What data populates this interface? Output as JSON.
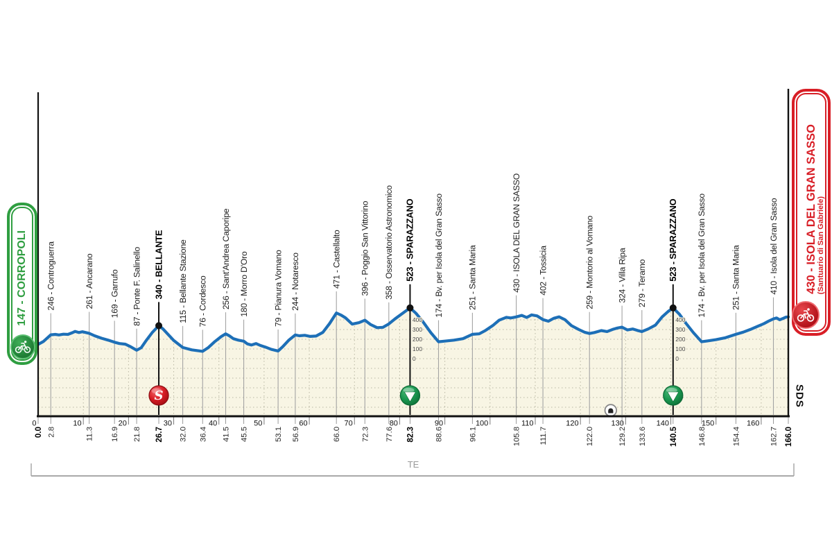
{
  "start_badge": {
    "label": "147 - CORROPOLI",
    "color": "#2f9e41",
    "icon": "cyclist"
  },
  "finish_badge": {
    "label": "430 - ISOLA DEL GRAN SASSO",
    "sublabel": "(Santuario di San Gabriele)",
    "color": "#d81e26",
    "icon": "cyclist"
  },
  "province_label": "TE",
  "logo": "SDS",
  "chart_data": {
    "type": "line",
    "x_unit": "km",
    "y_unit": "m",
    "km_start": 0.0,
    "km_end": 166.0,
    "start": {
      "km": 0.0,
      "elevation": 147,
      "name": "CORROPOLI"
    },
    "finish": {
      "km": 166.0,
      "elevation": 430,
      "name": "ISOLA DEL GRAN SASSO (Santuario di San Gabriele)"
    },
    "axis_km_ticks": [
      0,
      10,
      20,
      30,
      40,
      50,
      60,
      70,
      80,
      90,
      100,
      110,
      120,
      130,
      140,
      150,
      160
    ],
    "km_labels": [
      {
        "value": "0.0",
        "bold": true
      },
      {
        "value": "2.8",
        "bold": false
      },
      {
        "value": "11.3",
        "bold": false
      },
      {
        "value": "16.9",
        "bold": false
      },
      {
        "value": "21.8",
        "bold": false
      },
      {
        "value": "26.7",
        "bold": true
      },
      {
        "value": "32.0",
        "bold": false
      },
      {
        "value": "36.4",
        "bold": false
      },
      {
        "value": "41.5",
        "bold": false
      },
      {
        "value": "45.5",
        "bold": false
      },
      {
        "value": "53.1",
        "bold": false
      },
      {
        "value": "56.9",
        "bold": false
      },
      {
        "value": "66.0",
        "bold": false
      },
      {
        "value": "72.3",
        "bold": false
      },
      {
        "value": "77.6",
        "bold": false
      },
      {
        "value": "82.3",
        "bold": true
      },
      {
        "value": "88.6",
        "bold": false
      },
      {
        "value": "96.1",
        "bold": false
      },
      {
        "value": "105.8",
        "bold": false
      },
      {
        "value": "111.7",
        "bold": false
      },
      {
        "value": "122.0",
        "bold": false
      },
      {
        "value": "129.2",
        "bold": false
      },
      {
        "value": "133.6",
        "bold": false
      },
      {
        "value": "140.5",
        "bold": true
      },
      {
        "value": "146.8",
        "bold": false
      },
      {
        "value": "154.4",
        "bold": false
      },
      {
        "value": "162.7",
        "bold": false
      },
      {
        "value": "166.0",
        "bold": true
      }
    ],
    "waypoints": [
      {
        "km": 2.8,
        "elevation": 246,
        "name": "Controguerra",
        "style": "normal"
      },
      {
        "km": 11.3,
        "elevation": 261,
        "name": "Ancarano",
        "style": "normal"
      },
      {
        "km": 16.9,
        "elevation": 169,
        "name": "Garrufo",
        "style": "normal"
      },
      {
        "km": 21.8,
        "elevation": 87,
        "name": "Ponte F. Salinello",
        "style": "normal"
      },
      {
        "km": 26.7,
        "elevation": 340,
        "name": "BELLANTE",
        "style": "sprint"
      },
      {
        "km": 32.0,
        "elevation": 115,
        "name": "Bellante Stazione",
        "style": "normal"
      },
      {
        "km": 36.4,
        "elevation": 76,
        "name": "Cordesco",
        "style": "normal"
      },
      {
        "km": 41.5,
        "elevation": 256,
        "name": "Sant'Andrea Caporipe",
        "style": "normal"
      },
      {
        "km": 45.5,
        "elevation": 180,
        "name": "Morro D'Oro",
        "style": "normal"
      },
      {
        "km": 53.1,
        "elevation": 79,
        "name": "Pianura Vomano",
        "style": "normal"
      },
      {
        "km": 56.9,
        "elevation": 244,
        "name": "Notaresco",
        "style": "normal"
      },
      {
        "km": 66.0,
        "elevation": 471,
        "name": "Castellalto",
        "style": "normal"
      },
      {
        "km": 72.3,
        "elevation": 396,
        "name": "Poggio San Vittorino",
        "style": "normal"
      },
      {
        "km": 77.6,
        "elevation": 358,
        "name": "Osservatorio Astronomico",
        "style": "normal"
      },
      {
        "km": 82.3,
        "elevation": 523,
        "name": "SPARAZZANO",
        "style": "kom"
      },
      {
        "km": 88.6,
        "elevation": 174,
        "name": "Bv. per Isola del Gran Sasso",
        "style": "normal"
      },
      {
        "km": 96.1,
        "elevation": 251,
        "name": "Santa Maria",
        "style": "normal"
      },
      {
        "km": 105.8,
        "elevation": 430,
        "name": "ISOLA DEL GRAN SASSO",
        "style": "caps"
      },
      {
        "km": 111.7,
        "elevation": 402,
        "name": "Tossicia",
        "style": "normal"
      },
      {
        "km": 122.0,
        "elevation": 259,
        "name": "Montorio al Vomano",
        "style": "normal"
      },
      {
        "km": 129.2,
        "elevation": 324,
        "name": "Villa Ripa",
        "style": "normal"
      },
      {
        "km": 133.6,
        "elevation": 279,
        "name": "Teramo",
        "style": "normal"
      },
      {
        "km": 140.5,
        "elevation": 523,
        "name": "SPARAZZANO",
        "style": "kom"
      },
      {
        "km": 146.8,
        "elevation": 174,
        "name": "Bv. per Isola del Gran Sasso",
        "style": "normal"
      },
      {
        "km": 154.4,
        "elevation": 251,
        "name": "Santa Maria",
        "style": "normal"
      },
      {
        "km": 162.7,
        "elevation": 410,
        "name": "Isola del Gran Sasso",
        "style": "normal"
      }
    ],
    "profile": [
      [
        0,
        147
      ],
      [
        1.2,
        178
      ],
      [
        2.8,
        246
      ],
      [
        3.8,
        250
      ],
      [
        4.6,
        244
      ],
      [
        5.6,
        252
      ],
      [
        6.6,
        250
      ],
      [
        7.6,
        268
      ],
      [
        8.2,
        281
      ],
      [
        9,
        269
      ],
      [
        9.8,
        277
      ],
      [
        11.3,
        261
      ],
      [
        12.5,
        236
      ],
      [
        14,
        211
      ],
      [
        15.5,
        191
      ],
      [
        16.9,
        169
      ],
      [
        18,
        156
      ],
      [
        19.3,
        149
      ],
      [
        20.5,
        122
      ],
      [
        21.8,
        87
      ],
      [
        22.8,
        112
      ],
      [
        24,
        192
      ],
      [
        25.3,
        272
      ],
      [
        26.7,
        340
      ],
      [
        27.6,
        308
      ],
      [
        28.6,
        258
      ],
      [
        30,
        188
      ],
      [
        32,
        115
      ],
      [
        34,
        91
      ],
      [
        36.4,
        76
      ],
      [
        37.6,
        112
      ],
      [
        39,
        172
      ],
      [
        40.5,
        227
      ],
      [
        41.5,
        256
      ],
      [
        42.3,
        236
      ],
      [
        43.2,
        206
      ],
      [
        44.3,
        191
      ],
      [
        45.5,
        180
      ],
      [
        46.3,
        152
      ],
      [
        47.2,
        141
      ],
      [
        48.2,
        156
      ],
      [
        49.2,
        136
      ],
      [
        50.2,
        121
      ],
      [
        51.6,
        96
      ],
      [
        53.1,
        79
      ],
      [
        54.1,
        122
      ],
      [
        55.5,
        192
      ],
      [
        56.9,
        244
      ],
      [
        57.8,
        236
      ],
      [
        59,
        241
      ],
      [
        60.2,
        229
      ],
      [
        61.5,
        233
      ],
      [
        63,
        271
      ],
      [
        64.5,
        362
      ],
      [
        66,
        471
      ],
      [
        67,
        449
      ],
      [
        68,
        421
      ],
      [
        69.5,
        356
      ],
      [
        71,
        371
      ],
      [
        72.3,
        396
      ],
      [
        73.6,
        351
      ],
      [
        75,
        319
      ],
      [
        76.3,
        323
      ],
      [
        77.6,
        358
      ],
      [
        79,
        411
      ],
      [
        80.6,
        466
      ],
      [
        82.3,
        523
      ],
      [
        83.6,
        468
      ],
      [
        85.2,
        378
      ],
      [
        86.9,
        268
      ],
      [
        88.6,
        174
      ],
      [
        90,
        181
      ],
      [
        92,
        191
      ],
      [
        94,
        206
      ],
      [
        96.1,
        251
      ],
      [
        97.6,
        256
      ],
      [
        99,
        291
      ],
      [
        100.6,
        341
      ],
      [
        102,
        396
      ],
      [
        103.6,
        426
      ],
      [
        104.6,
        419
      ],
      [
        105.8,
        430
      ],
      [
        107,
        446
      ],
      [
        108.1,
        424
      ],
      [
        109.2,
        451
      ],
      [
        110.4,
        441
      ],
      [
        111.7,
        402
      ],
      [
        112.9,
        386
      ],
      [
        114.1,
        416
      ],
      [
        115.3,
        431
      ],
      [
        116.6,
        401
      ],
      [
        118,
        341
      ],
      [
        119.6,
        301
      ],
      [
        121,
        271
      ],
      [
        122,
        259
      ],
      [
        123.1,
        269
      ],
      [
        124.6,
        289
      ],
      [
        125.9,
        279
      ],
      [
        127.1,
        301
      ],
      [
        128.2,
        316
      ],
      [
        129.2,
        324
      ],
      [
        130.4,
        296
      ],
      [
        131.6,
        306
      ],
      [
        132.6,
        291
      ],
      [
        133.6,
        279
      ],
      [
        135,
        306
      ],
      [
        136.6,
        346
      ],
      [
        138.1,
        431
      ],
      [
        139.4,
        486
      ],
      [
        140.5,
        523
      ],
      [
        141.9,
        458
      ],
      [
        143.3,
        368
      ],
      [
        145,
        268
      ],
      [
        146.8,
        174
      ],
      [
        148.1,
        183
      ],
      [
        150,
        196
      ],
      [
        152.1,
        216
      ],
      [
        154.4,
        251
      ],
      [
        156,
        273
      ],
      [
        157.6,
        301
      ],
      [
        159.1,
        331
      ],
      [
        160.6,
        361
      ],
      [
        161.6,
        386
      ],
      [
        162.7,
        410
      ],
      [
        163.4,
        419
      ],
      [
        164.1,
        401
      ],
      [
        164.9,
        416
      ],
      [
        165.5,
        428
      ],
      [
        166,
        430
      ]
    ],
    "elevation_scale": {
      "values": [
        400,
        300,
        200,
        100,
        0
      ],
      "at_km": [
        82.3,
        140.5
      ]
    },
    "tunnel_km": 126.7,
    "legend": {
      "sprint_icon": "S",
      "kom_icon": "triangle-down"
    },
    "colors": {
      "line": "#1d6fb7",
      "fill": "#f8f5e4",
      "grid": "#b9b7a3",
      "marker_black": "#111111",
      "sprint_red": "#d81e26",
      "kom_green": "#1a9750",
      "waypoint_line": "#a3a3a3"
    }
  }
}
